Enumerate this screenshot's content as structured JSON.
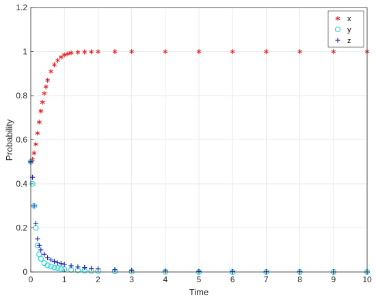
{
  "chart_data": {
    "type": "scatter",
    "title": "",
    "xlabel": "Time",
    "ylabel": "Probability",
    "xlim": [
      0,
      10
    ],
    "ylim": [
      0,
      1.2
    ],
    "x_ticks": [
      "0",
      "1",
      "2",
      "3",
      "4",
      "5",
      "6",
      "7",
      "8",
      "9",
      "10"
    ],
    "y_ticks": [
      "0",
      "0.2",
      "0.4",
      "0.6",
      "0.8",
      "1",
      "1.2"
    ],
    "grid": true,
    "legend_position": "top-right",
    "series": [
      {
        "name": "x",
        "marker": "asterisk",
        "color": "#e8191c",
        "x": [
          0.0,
          0.05,
          0.1,
          0.15,
          0.2,
          0.25,
          0.3,
          0.35,
          0.4,
          0.45,
          0.5,
          0.6,
          0.7,
          0.8,
          0.9,
          1.0,
          1.1,
          1.2,
          1.4,
          1.6,
          1.8,
          2.0,
          2.5,
          3.0,
          4.0,
          5.0,
          6.0,
          7.0,
          8.0,
          9.0,
          10.0
        ],
        "y": [
          0.5,
          0.51,
          0.54,
          0.58,
          0.63,
          0.68,
          0.73,
          0.77,
          0.81,
          0.84,
          0.87,
          0.91,
          0.94,
          0.96,
          0.975,
          0.985,
          0.99,
          0.994,
          0.997,
          0.998,
          0.999,
          1.0,
          1.0,
          1.0,
          1.0,
          1.0,
          1.0,
          1.0,
          1.0,
          1.0,
          1.0
        ]
      },
      {
        "name": "y",
        "marker": "circle",
        "color": "#19d3d3",
        "x": [
          0.0,
          0.05,
          0.1,
          0.15,
          0.2,
          0.25,
          0.3,
          0.4,
          0.5,
          0.6,
          0.7,
          0.8,
          0.9,
          1.0,
          1.2,
          1.4,
          1.6,
          1.8,
          2.0,
          2.5,
          3.0,
          4.0,
          5.0,
          6.0,
          7.0,
          8.0,
          9.0,
          10.0
        ],
        "y": [
          0.5,
          0.4,
          0.3,
          0.2,
          0.12,
          0.08,
          0.06,
          0.04,
          0.03,
          0.025,
          0.02,
          0.018,
          0.015,
          0.012,
          0.01,
          0.008,
          0.006,
          0.005,
          0.004,
          0.003,
          0.002,
          0.001,
          0.0,
          0.0,
          0.0,
          0.0,
          0.0,
          0.0
        ]
      },
      {
        "name": "z",
        "marker": "plus",
        "color": "#1f1fb8",
        "x": [
          0.0,
          0.05,
          0.1,
          0.15,
          0.2,
          0.25,
          0.3,
          0.4,
          0.5,
          0.6,
          0.7,
          0.8,
          0.9,
          1.0,
          1.2,
          1.4,
          1.6,
          1.8,
          2.0,
          2.5,
          3.0,
          4.0,
          5.0,
          6.0,
          7.0,
          8.0,
          9.0,
          10.0
        ],
        "y": [
          0.5,
          0.43,
          0.3,
          0.22,
          0.15,
          0.12,
          0.1,
          0.08,
          0.065,
          0.055,
          0.048,
          0.042,
          0.038,
          0.035,
          0.028,
          0.023,
          0.02,
          0.017,
          0.015,
          0.01,
          0.008,
          0.005,
          0.003,
          0.002,
          0.001,
          0.001,
          0.0,
          0.0
        ]
      }
    ]
  }
}
